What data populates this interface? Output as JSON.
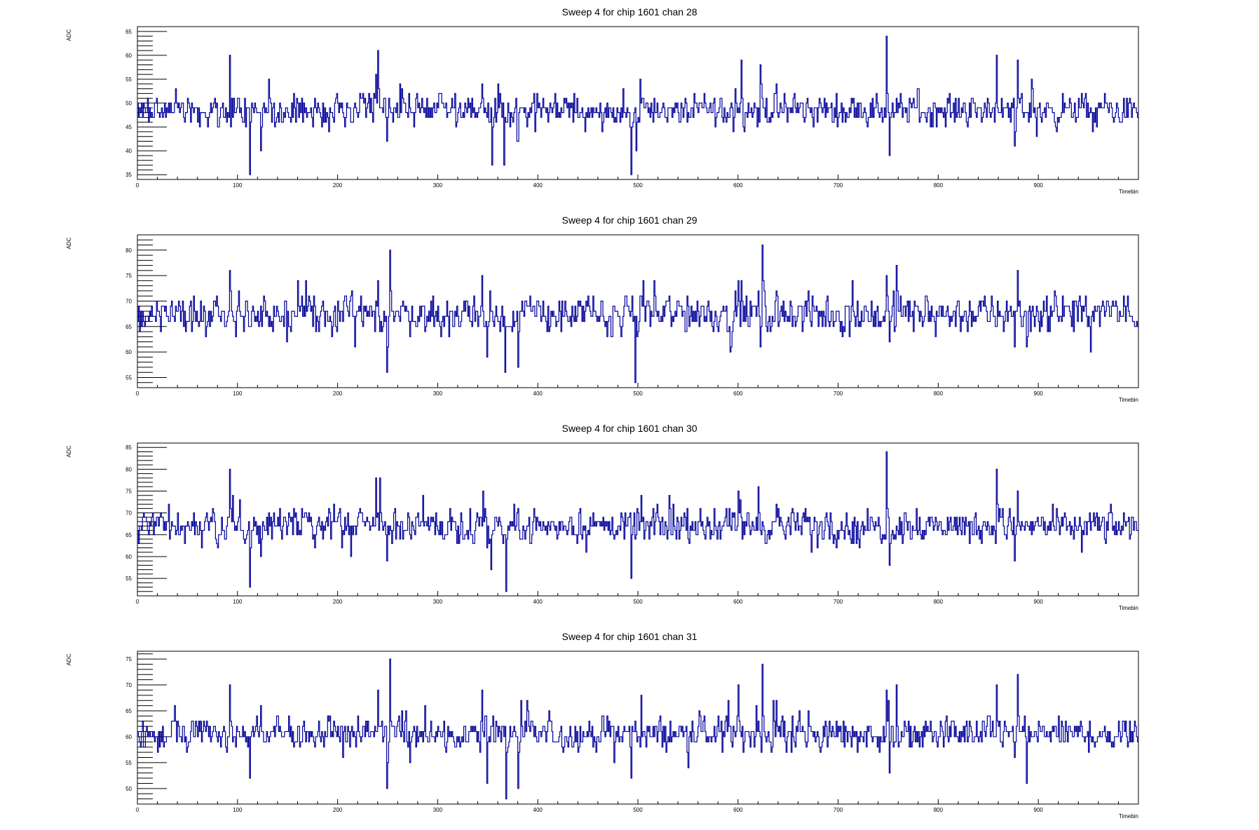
{
  "chart_data": [
    {
      "type": "line",
      "title": "Sweep 4 for chip 1601 chan 28",
      "xlabel": "Timebin",
      "ylabel": "ADC",
      "xlim": [
        0,
        1000
      ],
      "ylim": [
        34,
        66
      ],
      "xticks": [
        0,
        100,
        200,
        300,
        400,
        500,
        600,
        700,
        800,
        900
      ],
      "yticks": [
        35,
        40,
        45,
        50,
        55,
        60,
        65
      ],
      "baseline": 48.5,
      "noise": 1.6,
      "seed": 28,
      "series_color": "#000099",
      "spikes": [
        [
          92,
          60
        ],
        [
          112,
          35
        ],
        [
          123,
          40
        ],
        [
          131,
          55
        ],
        [
          238,
          56
        ],
        [
          240,
          61
        ],
        [
          249,
          42
        ],
        [
          262,
          54
        ],
        [
          344,
          54
        ],
        [
          354,
          37
        ],
        [
          360,
          54
        ],
        [
          366,
          37
        ],
        [
          380,
          42
        ],
        [
          397,
          44
        ],
        [
          485,
          53
        ],
        [
          493,
          35
        ],
        [
          498,
          40
        ],
        [
          502,
          55
        ],
        [
          597,
          53
        ],
        [
          603,
          59
        ],
        [
          622,
          58
        ],
        [
          638,
          54
        ],
        [
          748,
          64
        ],
        [
          751,
          39
        ],
        [
          779,
          53
        ],
        [
          858,
          60
        ],
        [
          876,
          41
        ],
        [
          879,
          59
        ],
        [
          893,
          55
        ],
        [
          898,
          43
        ]
      ]
    },
    {
      "type": "line",
      "title": "Sweep 4 for chip 1601 chan 29",
      "xlabel": "Timebin",
      "ylabel": "ADC",
      "xlim": [
        0,
        1000
      ],
      "ylim": [
        53,
        83
      ],
      "xticks": [
        0,
        100,
        200,
        300,
        400,
        500,
        600,
        700,
        800,
        900
      ],
      "yticks": [
        55,
        60,
        65,
        70,
        75,
        80
      ],
      "baseline": 67.5,
      "noise": 1.8,
      "seed": 29,
      "series_color": "#000099",
      "spikes": [
        [
          92,
          76
        ],
        [
          217,
          61
        ],
        [
          240,
          74
        ],
        [
          249,
          56
        ],
        [
          252,
          80
        ],
        [
          344,
          75
        ],
        [
          349,
          59
        ],
        [
          367,
          56
        ],
        [
          370,
          65
        ],
        [
          380,
          57
        ],
        [
          497,
          54
        ],
        [
          505,
          74
        ],
        [
          600,
          74
        ],
        [
          622,
          61
        ],
        [
          624,
          81
        ],
        [
          638,
          72
        ],
        [
          748,
          75
        ],
        [
          751,
          62
        ],
        [
          758,
          77
        ],
        [
          876,
          61
        ],
        [
          879,
          76
        ],
        [
          888,
          61
        ]
      ]
    },
    {
      "type": "line",
      "title": "Sweep 4 for chip 1601 chan 30",
      "xlabel": "Timebin",
      "ylabel": "ADC",
      "xlim": [
        0,
        1000
      ],
      "ylim": [
        51,
        86
      ],
      "xticks": [
        0,
        100,
        200,
        300,
        400,
        500,
        600,
        700,
        800,
        900
      ],
      "yticks": [
        55,
        60,
        65,
        70,
        75,
        80,
        85
      ],
      "baseline": 67,
      "noise": 1.8,
      "seed": 30,
      "series_color": "#000099",
      "spikes": [
        [
          92,
          80
        ],
        [
          112,
          53
        ],
        [
          123,
          60
        ],
        [
          213,
          60
        ],
        [
          238,
          78
        ],
        [
          242,
          78
        ],
        [
          249,
          59
        ],
        [
          345,
          75
        ],
        [
          353,
          57
        ],
        [
          368,
          52
        ],
        [
          376,
          72
        ],
        [
          493,
          55
        ],
        [
          503,
          74
        ],
        [
          600,
          75
        ],
        [
          620,
          76
        ],
        [
          638,
          72
        ],
        [
          748,
          84
        ],
        [
          751,
          58
        ],
        [
          778,
          71
        ],
        [
          858,
          80
        ],
        [
          876,
          59
        ],
        [
          879,
          75
        ]
      ]
    },
    {
      "type": "line",
      "title": "Sweep 4 for chip 1601 chan 31",
      "xlabel": "Timebin",
      "ylabel": "ADC",
      "xlim": [
        0,
        1000
      ],
      "ylim": [
        47,
        76.5
      ],
      "xticks": [
        0,
        100,
        200,
        300,
        400,
        500,
        600,
        700,
        800,
        900
      ],
      "yticks": [
        50,
        55,
        60,
        65,
        70,
        75
      ],
      "baseline": 60.5,
      "noise": 1.5,
      "seed": 31,
      "series_color": "#000099",
      "spikes": [
        [
          92,
          70
        ],
        [
          112,
          52
        ],
        [
          123,
          66
        ],
        [
          240,
          69
        ],
        [
          249,
          50
        ],
        [
          252,
          75
        ],
        [
          344,
          69
        ],
        [
          349,
          51
        ],
        [
          368,
          48
        ],
        [
          380,
          50
        ],
        [
          383,
          67
        ],
        [
          493,
          52
        ],
        [
          503,
          68
        ],
        [
          600,
          70
        ],
        [
          618,
          66
        ],
        [
          624,
          74
        ],
        [
          638,
          67
        ],
        [
          748,
          69
        ],
        [
          751,
          53
        ],
        [
          758,
          70
        ],
        [
          858,
          70
        ],
        [
          876,
          56
        ],
        [
          879,
          72
        ],
        [
          888,
          51
        ]
      ]
    }
  ]
}
